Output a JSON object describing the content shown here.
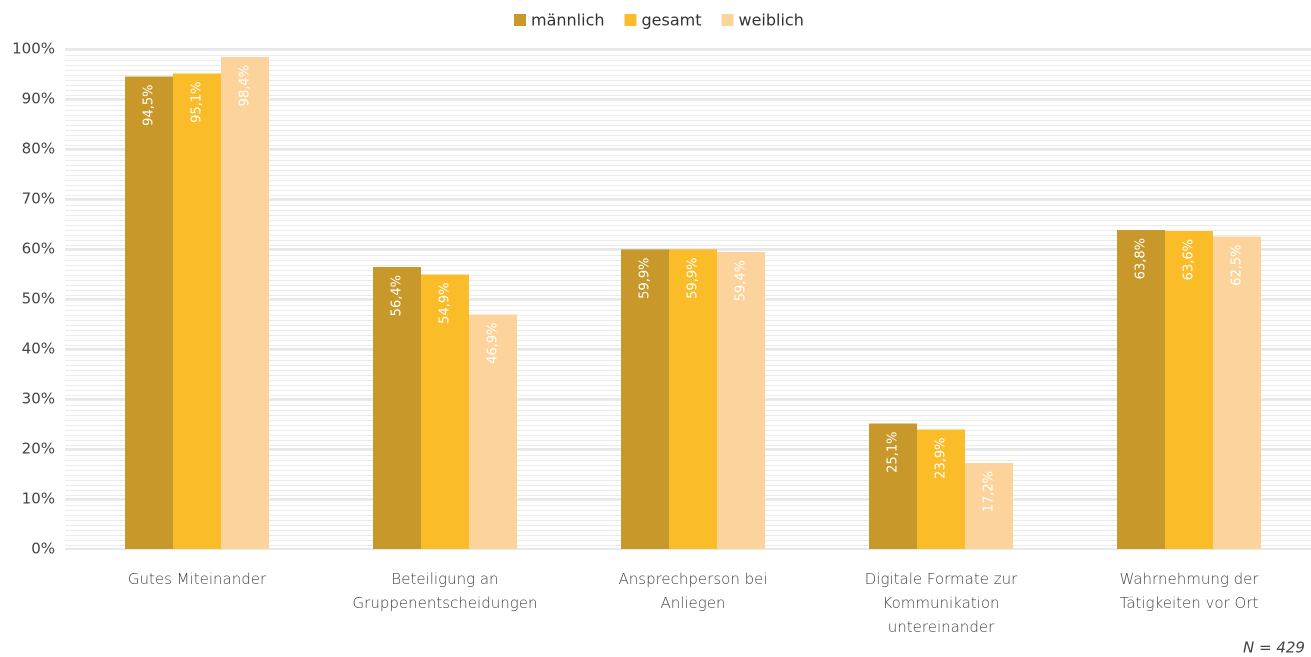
{
  "chart_data": {
    "type": "bar",
    "categories": [
      "Gutes Miteinander",
      "Beteiligung an Gruppenentscheidungen",
      "Ansprechperson bei Anliegen",
      "Digitale Formate zur Kommunikation untereinander",
      "Wahrnehmung der Tätigkeiten vor Ort"
    ],
    "series": [
      {
        "name": "männlich",
        "color": "#c9982a",
        "values": [
          94.5,
          56.4,
          59.9,
          25.1,
          63.8
        ],
        "value_labels": [
          "94,5%",
          "56,4%",
          "59,9%",
          "25,1%",
          "63,8%"
        ]
      },
      {
        "name": "gesamt",
        "color": "#fbbc2a",
        "values": [
          95.1,
          54.9,
          59.9,
          23.9,
          63.6
        ],
        "value_labels": [
          "95,1%",
          "54,9%",
          "59,9%",
          "23,9%",
          "63,6%"
        ]
      },
      {
        "name": "weiblich",
        "color": "#fcd49b",
        "values": [
          98.4,
          46.9,
          59.4,
          17.2,
          62.5
        ],
        "value_labels": [
          "98,4%",
          "46,9%",
          "59,4%",
          "17,2%",
          "62,5%"
        ]
      }
    ],
    "ylim": [
      0,
      100
    ],
    "yticks": [
      {
        "value": 0,
        "label": "0%"
      },
      {
        "value": 10,
        "label": "10%"
      },
      {
        "value": 20,
        "label": "20%"
      },
      {
        "value": 30,
        "label": "30%"
      },
      {
        "value": 40,
        "label": "40%"
      },
      {
        "value": 50,
        "label": "50%"
      },
      {
        "value": 60,
        "label": "60%"
      },
      {
        "value": 70,
        "label": "70%"
      },
      {
        "value": 80,
        "label": "80%"
      },
      {
        "value": 90,
        "label": "90%"
      },
      {
        "value": 100,
        "label": "100%"
      }
    ],
    "grid": true,
    "legend": "top",
    "annotations": [
      "N = 429"
    ]
  }
}
